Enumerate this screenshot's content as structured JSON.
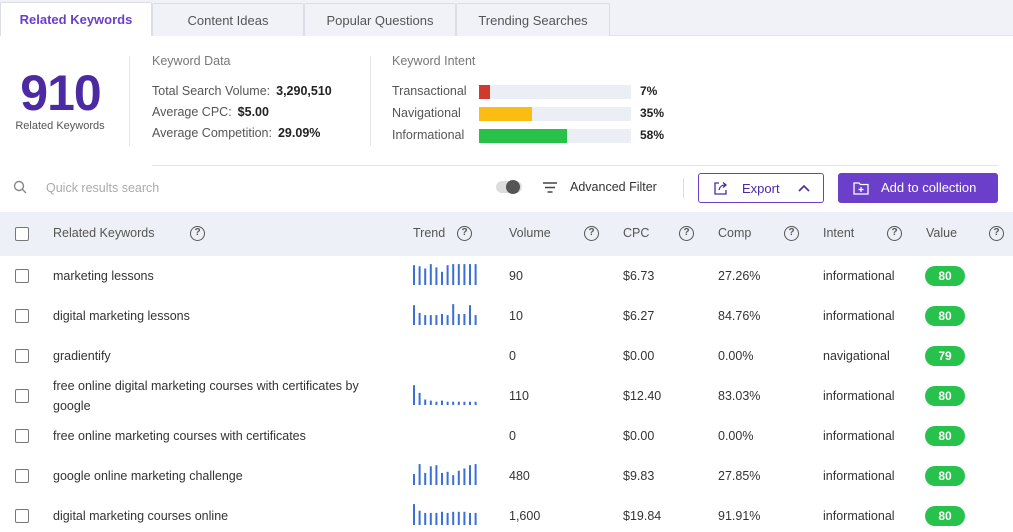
{
  "tabs": [
    {
      "label": "Related Keywords",
      "active": true
    },
    {
      "label": "Content Ideas",
      "active": false
    },
    {
      "label": "Popular Questions",
      "active": false
    },
    {
      "label": "Trending Searches",
      "active": false
    }
  ],
  "summary": {
    "count": "910",
    "count_label": "Related Keywords"
  },
  "keyword_data": {
    "title": "Keyword Data",
    "rows": [
      {
        "label": "Total Search Volume:",
        "value": "3,290,510"
      },
      {
        "label": "Average CPC:",
        "value": "$5.00"
      },
      {
        "label": "Average Competition:",
        "value": "29.09%"
      }
    ]
  },
  "keyword_intent": {
    "title": "Keyword Intent",
    "rows": [
      {
        "label": "Transactional",
        "pct_label": "7%",
        "fraction": 0.07,
        "color": "#d0392b"
      },
      {
        "label": "Navigational",
        "pct_label": "35%",
        "fraction": 0.35,
        "color": "#fbbd14"
      },
      {
        "label": "Informational",
        "pct_label": "58%",
        "fraction": 0.58,
        "color": "#28c24b"
      }
    ]
  },
  "toolbar": {
    "search_placeholder": "Quick results search",
    "advanced_filter": "Advanced Filter",
    "export_label": "Export",
    "add_label": "Add to collection"
  },
  "table": {
    "headers": {
      "keyword": "Related Keywords",
      "trend": "Trend",
      "volume": "Volume",
      "cpc": "CPC",
      "comp": "Comp",
      "intent": "Intent",
      "value": "Value"
    },
    "rows": [
      {
        "keyword": "marketing lessons",
        "volume": "90",
        "cpc": "$6.73",
        "comp": "27.26%",
        "intent": "informational",
        "value": "80",
        "trend": [
          0.9,
          0.85,
          0.75,
          0.95,
          0.8,
          0.6,
          0.9,
          0.95,
          0.95,
          0.95,
          0.95,
          0.95
        ]
      },
      {
        "keyword": "digital marketing lessons",
        "volume": "10",
        "cpc": "$6.27",
        "comp": "84.76%",
        "intent": "informational",
        "value": "80",
        "trend": [
          0.9,
          0.55,
          0.45,
          0.45,
          0.45,
          0.5,
          0.45,
          0.95,
          0.5,
          0.5,
          0.9,
          0.45
        ]
      },
      {
        "keyword": "gradientify",
        "volume": "0",
        "cpc": "$0.00",
        "comp": "0.00%",
        "intent": "navigational",
        "value": "79",
        "trend": []
      },
      {
        "keyword": "free online digital marketing courses with certificates by google",
        "volume": "110",
        "cpc": "$12.40",
        "comp": "83.03%",
        "intent": "informational",
        "value": "80",
        "trend": [
          0.9,
          0.55,
          0.25,
          0.2,
          0.15,
          0.2,
          0.15,
          0.15,
          0.15,
          0.15,
          0.15,
          0.15
        ]
      },
      {
        "keyword": "free online marketing courses with certificates",
        "volume": "0",
        "cpc": "$0.00",
        "comp": "0.00%",
        "intent": "informational",
        "value": "80",
        "trend": []
      },
      {
        "keyword": "google online marketing challenge",
        "volume": "480",
        "cpc": "$9.83",
        "comp": "27.85%",
        "intent": "informational",
        "value": "80",
        "trend": [
          0.5,
          0.95,
          0.55,
          0.85,
          0.9,
          0.55,
          0.6,
          0.45,
          0.65,
          0.75,
          0.9,
          0.95
        ]
      },
      {
        "keyword": "digital marketing courses online",
        "volume": "1,600",
        "cpc": "$19.84",
        "comp": "91.91%",
        "intent": "informational",
        "value": "80",
        "trend": [
          0.95,
          0.65,
          0.55,
          0.55,
          0.55,
          0.6,
          0.55,
          0.6,
          0.6,
          0.6,
          0.55,
          0.55
        ]
      }
    ]
  },
  "colors": {
    "accent": "#6b3fc9",
    "value_badge": "#27c24c",
    "trend_bar": "#3b6fd8"
  }
}
